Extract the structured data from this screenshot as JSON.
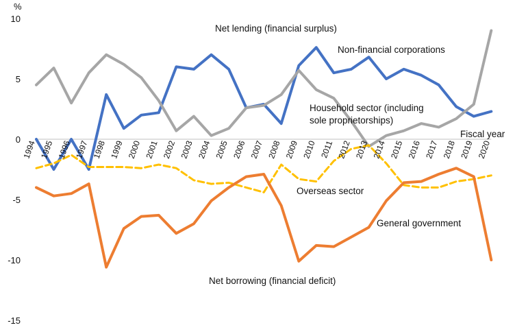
{
  "chart_data": {
    "type": "line",
    "title": "",
    "ylabel": "%",
    "xlabel": "Fiscal year",
    "ylim": [
      -15,
      10
    ],
    "yticks": [
      10,
      5,
      0,
      -5,
      -10,
      -15
    ],
    "grid": false,
    "legend": "none",
    "categories": [
      "1994",
      "1995",
      "1996",
      "1997",
      "1998",
      "1999",
      "2000",
      "2001",
      "2002",
      "2003",
      "2004",
      "2005",
      "2006",
      "2007",
      "2008",
      "2009",
      "2010",
      "2011",
      "2012",
      "2013",
      "2014",
      "2015",
      "2016",
      "2017",
      "2018",
      "2019",
      "2020"
    ],
    "series": [
      {
        "name": "Non-financial corporations",
        "color": "#4472c4",
        "dash": false,
        "values": [
          0.0,
          -2.5,
          0.0,
          -2.5,
          3.7,
          0.9,
          2.0,
          2.2,
          6.0,
          5.8,
          7.0,
          5.8,
          2.6,
          2.9,
          1.3,
          6.1,
          7.6,
          5.5,
          5.8,
          6.8,
          5.0,
          5.8,
          5.3,
          4.5,
          2.7,
          1.9,
          2.3
        ]
      },
      {
        "name": "Household sector (including sole proprietorships)",
        "color": "#a6a6a6",
        "dash": false,
        "values": [
          4.5,
          5.9,
          3.0,
          5.5,
          7.0,
          6.2,
          5.1,
          3.2,
          0.7,
          1.9,
          0.3,
          0.9,
          2.6,
          2.8,
          3.7,
          5.7,
          4.1,
          3.4,
          1.5,
          -0.6,
          0.3,
          0.7,
          1.3,
          1.0,
          1.7,
          2.9,
          9.0
        ]
      },
      {
        "name": "Overseas sector",
        "color": "#ffc000",
        "dash": true,
        "values": [
          -2.4,
          -2.0,
          -1.3,
          -2.3,
          -2.3,
          -2.3,
          -2.4,
          -2.1,
          -2.4,
          -3.4,
          -3.7,
          -3.6,
          -4.0,
          -4.4,
          -2.1,
          -3.3,
          -3.5,
          -1.8,
          -0.8,
          -0.5,
          -2.0,
          -3.8,
          -4.0,
          -4.0,
          -3.5,
          -3.3,
          -3.0
        ]
      },
      {
        "name": "General government",
        "color": "#ed7d31",
        "dash": false,
        "values": [
          -4.0,
          -4.7,
          -4.5,
          -3.7,
          -10.6,
          -7.4,
          -6.4,
          -6.3,
          -7.8,
          -7.0,
          -5.1,
          -4.0,
          -3.1,
          -2.9,
          -5.5,
          -10.1,
          -8.8,
          -8.9,
          -8.1,
          -7.3,
          -5.1,
          -3.6,
          -3.5,
          -2.9,
          -2.4,
          -3.1,
          -10.0
        ]
      }
    ],
    "annotations": {
      "net_lending": "Net lending (financial surplus)",
      "net_borrowing": "Net borrowing (financial deficit)",
      "non_financial": "Non-financial corporations",
      "household_line1": "Household sector (including",
      "household_line2": "sole proprietorships)",
      "overseas": "Overseas sector",
      "government": "General government",
      "fiscal_year": "Fiscal year"
    }
  }
}
